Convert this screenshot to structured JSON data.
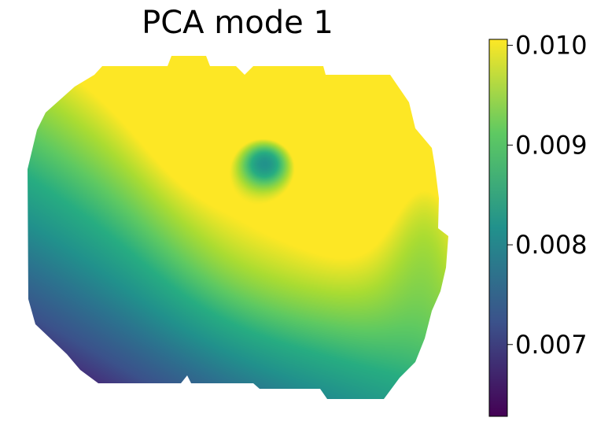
{
  "chart_data": {
    "type": "heatmap",
    "title": "PCA mode 1",
    "xlabel": "",
    "ylabel": "",
    "axes_visible": false,
    "grid": false,
    "colormap": "viridis",
    "colorbar": {
      "position": "right",
      "range": [
        0.00628,
        0.01006
      ],
      "ticks": [
        0.007,
        0.008,
        0.009,
        0.01
      ],
      "tick_labels": [
        "0.007",
        "0.008",
        "0.009",
        "0.010"
      ]
    },
    "field_features": [
      {
        "region": "top center",
        "value": 0.01
      },
      {
        "region": "upper-middle local minimum",
        "value": 0.0082
      },
      {
        "region": "center",
        "value": 0.0093
      },
      {
        "region": "right edge",
        "value": 0.0081
      },
      {
        "region": "bottom-right",
        "value": 0.0076
      },
      {
        "region": "lower-left corner",
        "value": 0.0063
      },
      {
        "region": "left edge",
        "value": 0.0071
      }
    ],
    "colorbar_colors": [
      "#440154",
      "#3b528b",
      "#21918c",
      "#5ec962",
      "#fde725"
    ]
  }
}
